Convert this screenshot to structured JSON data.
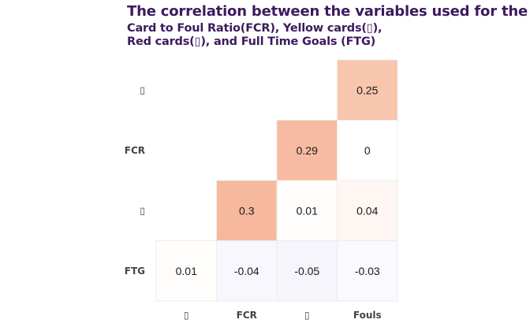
{
  "title": "The correlation between the variables used for the an",
  "subtitle_line1": "Card to Foul Ratio(FCR), Yellow cards(▯),",
  "subtitle_line2": "Red cards(▯), and Full Time Goals (FTG)",
  "chart_data": {
    "type": "heatmap",
    "x_labels": [
      "▯",
      "FCR",
      "▯",
      "Fouls"
    ],
    "y_labels": [
      "▯",
      "FCR",
      "▯",
      "FTG"
    ],
    "values": [
      [
        null,
        null,
        null,
        0.25
      ],
      [
        null,
        null,
        0.29,
        0
      ],
      [
        null,
        0.3,
        0.01,
        0.04
      ],
      [
        0.01,
        -0.04,
        -0.05,
        -0.03
      ]
    ],
    "value_labels": [
      [
        null,
        null,
        null,
        "0.25"
      ],
      [
        null,
        null,
        "0.29",
        "0"
      ],
      [
        null,
        "0.3",
        "0.01",
        "0.04"
      ],
      [
        "0.01",
        "-0.04",
        "-0.05",
        "-0.03"
      ]
    ],
    "colors": {
      "positive": "#f4a582",
      "negative": "#b2a3e6",
      "neutral": "#ffffff",
      "border": "#ececec"
    },
    "legend": "none"
  }
}
